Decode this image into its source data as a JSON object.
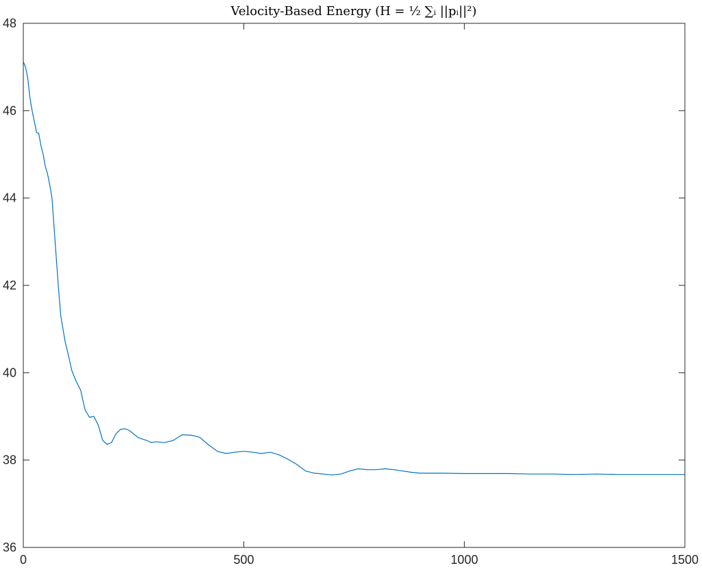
{
  "chart_data": {
    "type": "line",
    "title": "Velocity-Based Energy (H = ½ ∑ᵢ ||pᵢ||²)",
    "xlabel": "",
    "ylabel": "",
    "xlim": [
      0,
      1500
    ],
    "ylim": [
      36,
      48
    ],
    "xticks": [
      0,
      500,
      1000,
      1500
    ],
    "yticks": [
      36,
      38,
      40,
      42,
      44,
      46,
      48
    ],
    "grid": false,
    "legend": "none",
    "line_color": "#0072BD",
    "series": [
      {
        "x": [
          0,
          5,
          10,
          15,
          20,
          25,
          30,
          35,
          40,
          45,
          50,
          55,
          60,
          65,
          70,
          75,
          80,
          85,
          90,
          95,
          100,
          110,
          120,
          130,
          140,
          150,
          160,
          170,
          180,
          190,
          200,
          210,
          220,
          230,
          240,
          250,
          260,
          270,
          280,
          290,
          300,
          320,
          340,
          360,
          380,
          390,
          400,
          420,
          440,
          460,
          480,
          500,
          520,
          540,
          560,
          580,
          600,
          620,
          640,
          660,
          680,
          700,
          720,
          740,
          760,
          780,
          800,
          820,
          840,
          860,
          880,
          900,
          950,
          1000,
          1050,
          1100,
          1150,
          1200,
          1250,
          1300,
          1350,
          1400,
          1450,
          1500
        ],
        "y": [
          47.12,
          47.0,
          46.75,
          46.3,
          46.0,
          45.75,
          45.5,
          45.48,
          45.2,
          45.0,
          44.72,
          44.55,
          44.3,
          44.0,
          43.3,
          42.6,
          41.9,
          41.3,
          41.0,
          40.7,
          40.5,
          40.05,
          39.8,
          39.6,
          39.15,
          38.98,
          39.0,
          38.8,
          38.45,
          38.36,
          38.4,
          38.6,
          38.7,
          38.72,
          38.68,
          38.6,
          38.52,
          38.48,
          38.45,
          38.4,
          38.42,
          38.4,
          38.45,
          38.58,
          38.57,
          38.55,
          38.52,
          38.35,
          38.2,
          38.15,
          38.18,
          38.2,
          38.18,
          38.15,
          38.18,
          38.12,
          38.02,
          37.9,
          37.75,
          37.7,
          37.68,
          37.66,
          37.68,
          37.75,
          37.8,
          37.78,
          37.78,
          37.8,
          37.78,
          37.75,
          37.72,
          37.7,
          37.7,
          37.69,
          37.69,
          37.69,
          37.68,
          37.68,
          37.67,
          37.68,
          37.67,
          37.67,
          37.67,
          37.67
        ]
      }
    ]
  }
}
